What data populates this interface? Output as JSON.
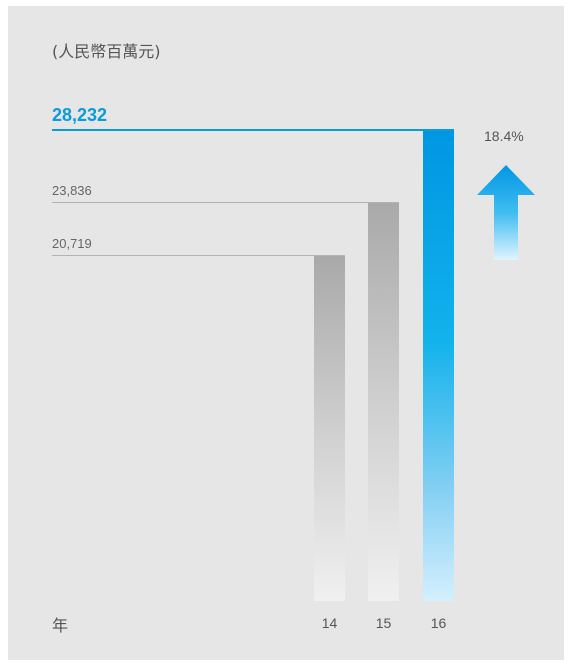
{
  "chart_data": {
    "type": "bar",
    "unit_label": "(人民幣百萬元)",
    "xlabel": "年",
    "ylabel": "",
    "categories": [
      "14",
      "15",
      "16"
    ],
    "values": [
      20719,
      23836,
      28232
    ],
    "value_labels": [
      "20,719",
      "23,836",
      "28,232"
    ],
    "highlight_index": 2,
    "growth_label": "18.4%",
    "ylim": [
      0,
      28232
    ],
    "grid": false,
    "colors": {
      "bar_grey": "#b0b0b0",
      "bar_highlight": "#0096e3",
      "highlight_text": "#0a9bdc",
      "background": "#e6e6e6"
    }
  }
}
